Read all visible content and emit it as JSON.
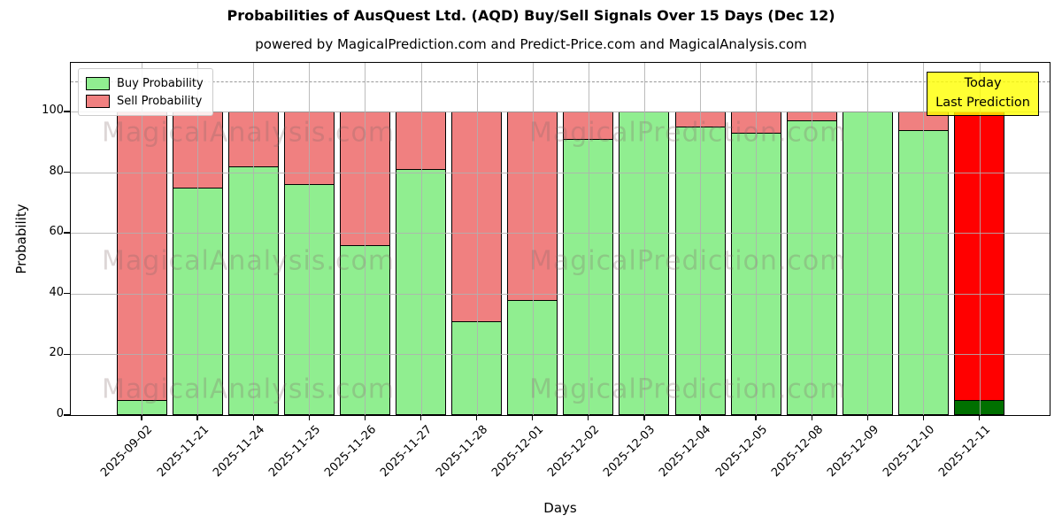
{
  "chart_data": {
    "type": "bar",
    "stacked": true,
    "title": "Probabilities of AusQuest Ltd. (AQD) Buy/Sell Signals Over 15 Days (Dec 12)",
    "subtitle": "powered by MagicalPrediction.com and Predict-Price.com and MagicalAnalysis.com",
    "xlabel": "Days",
    "ylabel": "Probability",
    "ylim": [
      0,
      116
    ],
    "yticks": [
      0,
      20,
      40,
      60,
      80,
      100
    ],
    "dashed_guideline_y": 110,
    "grid": true,
    "legend_position": "upper left",
    "categories": [
      "2025-09-02",
      "2025-11-21",
      "2025-11-24",
      "2025-11-25",
      "2025-11-26",
      "2025-11-27",
      "2025-11-28",
      "2025-12-01",
      "2025-12-02",
      "2025-12-03",
      "2025-12-04",
      "2025-12-05",
      "2025-12-08",
      "2025-12-09",
      "2025-12-10",
      "2025-12-11"
    ],
    "series": [
      {
        "name": "Buy Probability",
        "color": "#90EE90",
        "values": [
          5,
          75,
          82,
          76,
          56,
          81,
          31,
          38,
          91,
          100,
          95,
          93,
          97,
          100,
          94,
          5
        ]
      },
      {
        "name": "Sell Probability",
        "color": "#F08080",
        "values": [
          95,
          25,
          18,
          24,
          44,
          19,
          69,
          62,
          9,
          0,
          5,
          7,
          3,
          0,
          6,
          95
        ]
      }
    ],
    "today_bar": {
      "index": 15,
      "category": "2025-12-11",
      "buy_color": "#007000",
      "sell_color": "#FF0000"
    }
  },
  "legend": {
    "items": [
      {
        "label": "Buy Probability",
        "color": "#90EE90"
      },
      {
        "label": "Sell Probability",
        "color": "#F08080"
      }
    ]
  },
  "annotation_box": {
    "line1": "Today",
    "line2": "Last Prediction",
    "bg_color": "#FFFF00"
  },
  "watermarks": {
    "left_text": "MagicalAnalysis.com",
    "right_text": "MagicalPrediction.com"
  }
}
